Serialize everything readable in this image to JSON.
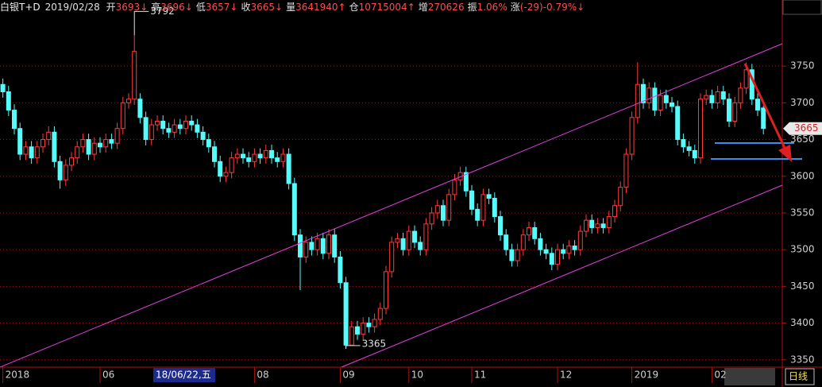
{
  "header": {
    "symbol": "白银T+D",
    "date": "2019/02/28",
    "fields": [
      {
        "label": "开",
        "text": "3693↓"
      },
      {
        "label": "高",
        "text": "3696↓"
      },
      {
        "label": "低",
        "text": "3657↓"
      },
      {
        "label": "收",
        "text": "3665↓"
      },
      {
        "label": "量",
        "text": "3641940↑"
      },
      {
        "label": "仓",
        "text": "10715004↑"
      },
      {
        "label": "增",
        "text": "270626"
      },
      {
        "label": "振",
        "text": "1.06%"
      },
      {
        "label": "涨",
        "text": "(-29)-0.79%↓"
      }
    ]
  },
  "chart_data": {
    "type": "candlestick",
    "categories": [
      "2018",
      null,
      null,
      null,
      null,
      null,
      null,
      null,
      null,
      null,
      null,
      null,
      null,
      null,
      null,
      null,
      null,
      "06",
      null,
      null,
      null,
      null,
      null,
      null,
      null,
      null,
      null,
      null,
      null,
      null,
      null,
      null,
      null,
      null,
      null,
      null,
      null,
      null,
      null,
      null,
      null,
      null,
      null,
      null,
      "08",
      null,
      null,
      null,
      null,
      null,
      null,
      null,
      null,
      null,
      null,
      null,
      null,
      null,
      null,
      "09",
      null,
      null,
      null,
      null,
      null,
      null,
      null,
      null,
      null,
      null,
      null,
      "10",
      null,
      null,
      null,
      null,
      null,
      null,
      null,
      null,
      null,
      null,
      "11",
      null,
      null,
      null,
      null,
      null,
      null,
      null,
      null,
      null,
      null,
      null,
      null,
      null,
      null,
      "12",
      null,
      null,
      null,
      null,
      null,
      null,
      null,
      null,
      null,
      null,
      null,
      null,
      "2019",
      null,
      null,
      null,
      null,
      null,
      null,
      null,
      null,
      null,
      null,
      null,
      null,
      null,
      "02",
      null,
      null,
      null,
      null,
      null,
      null,
      null,
      null,
      null
    ],
    "open": [
      3725,
      3715,
      3690,
      3665,
      3630,
      3640,
      3625,
      3640,
      3650,
      3660,
      3620,
      3595,
      3615,
      3625,
      3640,
      3650,
      3630,
      3645,
      3640,
      3650,
      3645,
      3665,
      3700,
      3705,
      3705,
      3680,
      3650,
      3670,
      3675,
      3665,
      3660,
      3670,
      3665,
      3675,
      3670,
      3660,
      3650,
      3640,
      3620,
      3600,
      3605,
      3625,
      3630,
      3625,
      3620,
      3630,
      3625,
      3635,
      3625,
      3620,
      3630,
      3590,
      3520,
      3490,
      3510,
      3500,
      3515,
      3495,
      3520,
      3490,
      3455,
      3370,
      3395,
      3385,
      3400,
      3395,
      3405,
      3420,
      3470,
      3510,
      3515,
      3500,
      3525,
      3510,
      3500,
      3535,
      3550,
      3560,
      3540,
      3575,
      3595,
      3605,
      3580,
      3555,
      3540,
      3575,
      3570,
      3545,
      3520,
      3500,
      3485,
      3500,
      3520,
      3530,
      3515,
      3500,
      3495,
      3480,
      3500,
      3495,
      3505,
      3500,
      3525,
      3540,
      3530,
      3535,
      3530,
      3545,
      3560,
      3585,
      3630,
      3680,
      3725,
      3700,
      3720,
      3690,
      3710,
      3700,
      3695,
      3650,
      3640,
      3635,
      3625,
      3705,
      3710,
      3700,
      3715,
      3705,
      3675,
      3700,
      3720,
      3745,
      3705,
      3693
    ],
    "high": [
      3733,
      3723,
      3698,
      3673,
      3648,
      3648,
      3648,
      3658,
      3668,
      3668,
      3628,
      3623,
      3633,
      3648,
      3658,
      3658,
      3653,
      3653,
      3658,
      3658,
      3673,
      3708,
      3713,
      3792,
      3713,
      3688,
      3678,
      3683,
      3683,
      3673,
      3678,
      3678,
      3683,
      3683,
      3678,
      3668,
      3658,
      3648,
      3628,
      3613,
      3633,
      3638,
      3638,
      3633,
      3638,
      3638,
      3643,
      3643,
      3633,
      3638,
      3638,
      3598,
      3528,
      3518,
      3518,
      3523,
      3523,
      3528,
      3528,
      3498,
      3463,
      3403,
      3403,
      3408,
      3408,
      3413,
      3428,
      3478,
      3518,
      3523,
      3523,
      3533,
      3533,
      3518,
      3543,
      3558,
      3568,
      3568,
      3583,
      3603,
      3613,
      3613,
      3588,
      3563,
      3583,
      3583,
      3578,
      3553,
      3528,
      3508,
      3508,
      3528,
      3538,
      3538,
      3523,
      3508,
      3503,
      3508,
      3508,
      3513,
      3513,
      3533,
      3548,
      3548,
      3543,
      3543,
      3553,
      3568,
      3593,
      3638,
      3688,
      3755,
      3733,
      3728,
      3728,
      3718,
      3718,
      3708,
      3703,
      3658,
      3648,
      3643,
      3713,
      3718,
      3718,
      3723,
      3723,
      3713,
      3708,
      3728,
      3755,
      3753,
      3713,
      3696
    ],
    "low": [
      3707,
      3682,
      3657,
      3622,
      3622,
      3617,
      3617,
      3632,
      3642,
      3612,
      3583,
      3587,
      3607,
      3617,
      3632,
      3622,
      3622,
      3632,
      3632,
      3637,
      3637,
      3657,
      3692,
      3697,
      3672,
      3642,
      3642,
      3662,
      3657,
      3652,
      3652,
      3657,
      3657,
      3662,
      3652,
      3642,
      3632,
      3612,
      3592,
      3592,
      3597,
      3617,
      3617,
      3612,
      3612,
      3617,
      3617,
      3617,
      3612,
      3612,
      3582,
      3512,
      3445,
      3482,
      3492,
      3492,
      3487,
      3487,
      3482,
      3447,
      3365,
      3372,
      3377,
      3377,
      3387,
      3387,
      3397,
      3412,
      3462,
      3502,
      3492,
      3492,
      3502,
      3492,
      3492,
      3527,
      3542,
      3532,
      3532,
      3567,
      3587,
      3572,
      3547,
      3532,
      3532,
      3562,
      3537,
      3512,
      3492,
      3477,
      3477,
      3492,
      3512,
      3507,
      3492,
      3487,
      3472,
      3472,
      3487,
      3487,
      3492,
      3492,
      3517,
      3522,
      3522,
      3522,
      3522,
      3537,
      3552,
      3577,
      3622,
      3672,
      3692,
      3692,
      3682,
      3682,
      3692,
      3687,
      3642,
      3632,
      3627,
      3617,
      3617,
      3697,
      3692,
      3692,
      3697,
      3667,
      3667,
      3692,
      3712,
      3697,
      3682,
      3657
    ],
    "close": [
      3715,
      3690,
      3665,
      3630,
      3640,
      3625,
      3640,
      3650,
      3660,
      3620,
      3595,
      3615,
      3625,
      3640,
      3650,
      3630,
      3645,
      3640,
      3650,
      3645,
      3665,
      3700,
      3705,
      3770,
      3680,
      3650,
      3670,
      3675,
      3665,
      3660,
      3670,
      3665,
      3675,
      3670,
      3660,
      3650,
      3640,
      3620,
      3600,
      3605,
      3625,
      3630,
      3625,
      3620,
      3630,
      3625,
      3635,
      3625,
      3620,
      3630,
      3590,
      3520,
      3490,
      3510,
      3500,
      3515,
      3495,
      3520,
      3490,
      3455,
      3370,
      3395,
      3385,
      3400,
      3395,
      3405,
      3420,
      3470,
      3510,
      3515,
      3500,
      3525,
      3510,
      3500,
      3535,
      3550,
      3560,
      3540,
      3575,
      3595,
      3605,
      3580,
      3555,
      3540,
      3575,
      3570,
      3545,
      3520,
      3500,
      3485,
      3500,
      3520,
      3530,
      3515,
      3500,
      3495,
      3480,
      3500,
      3495,
      3505,
      3500,
      3525,
      3540,
      3530,
      3535,
      3530,
      3545,
      3560,
      3585,
      3630,
      3680,
      3725,
      3700,
      3720,
      3690,
      3710,
      3700,
      3695,
      3650,
      3640,
      3635,
      3625,
      3705,
      3710,
      3700,
      3715,
      3705,
      3675,
      3700,
      3720,
      3745,
      3705,
      3690,
      3665
    ],
    "ylim": [
      3340,
      3840
    ],
    "yticks": [
      3350,
      3400,
      3450,
      3500,
      3550,
      3600,
      3650,
      3700,
      3750
    ],
    "grid": true,
    "up_color": "#ff3c3c",
    "down_color": "#54fcfc",
    "cursor_label": "18/06/22,五",
    "period": "日线"
  }
}
